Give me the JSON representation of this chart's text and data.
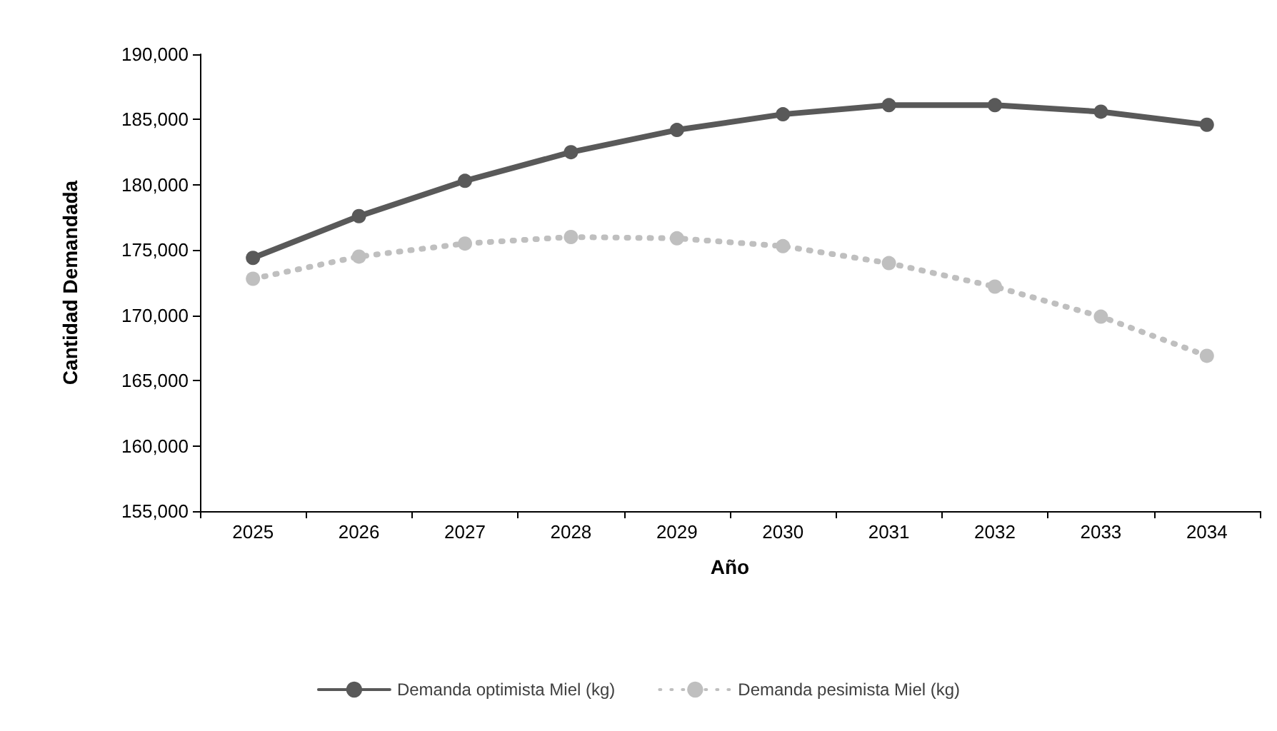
{
  "chart_data": {
    "type": "line",
    "xlabel": "Año",
    "ylabel": "Cantidad Demandada",
    "categories": [
      "2025",
      "2026",
      "2027",
      "2028",
      "2029",
      "2030",
      "2031",
      "2032",
      "2033",
      "2034"
    ],
    "series": [
      {
        "name": "Demanda optimista Miel (kg)",
        "color": "#595959",
        "line_style": "solid",
        "values": [
          174400,
          177600,
          180300,
          182500,
          184200,
          185400,
          186100,
          186100,
          185600,
          184600
        ]
      },
      {
        "name": "Demanda pesimista Miel (kg)",
        "color": "#bfbfbf",
        "line_style": "dotted",
        "values": [
          172800,
          174500,
          175500,
          176000,
          175900,
          175300,
          174000,
          172200,
          169900,
          166900
        ]
      }
    ],
    "ylim": [
      155000,
      190000
    ],
    "yticks": [
      {
        "value": 155000,
        "label": "155,000"
      },
      {
        "value": 160000,
        "label": "160,000"
      },
      {
        "value": 165000,
        "label": "165,000"
      },
      {
        "value": 170000,
        "label": "170,000"
      },
      {
        "value": 175000,
        "label": "175,000"
      },
      {
        "value": 180000,
        "label": "180,000"
      },
      {
        "value": 185000,
        "label": "185,000"
      },
      {
        "value": 190000,
        "label": "190,000"
      }
    ],
    "grid": false,
    "legend": "bottom",
    "marker": "circle"
  }
}
